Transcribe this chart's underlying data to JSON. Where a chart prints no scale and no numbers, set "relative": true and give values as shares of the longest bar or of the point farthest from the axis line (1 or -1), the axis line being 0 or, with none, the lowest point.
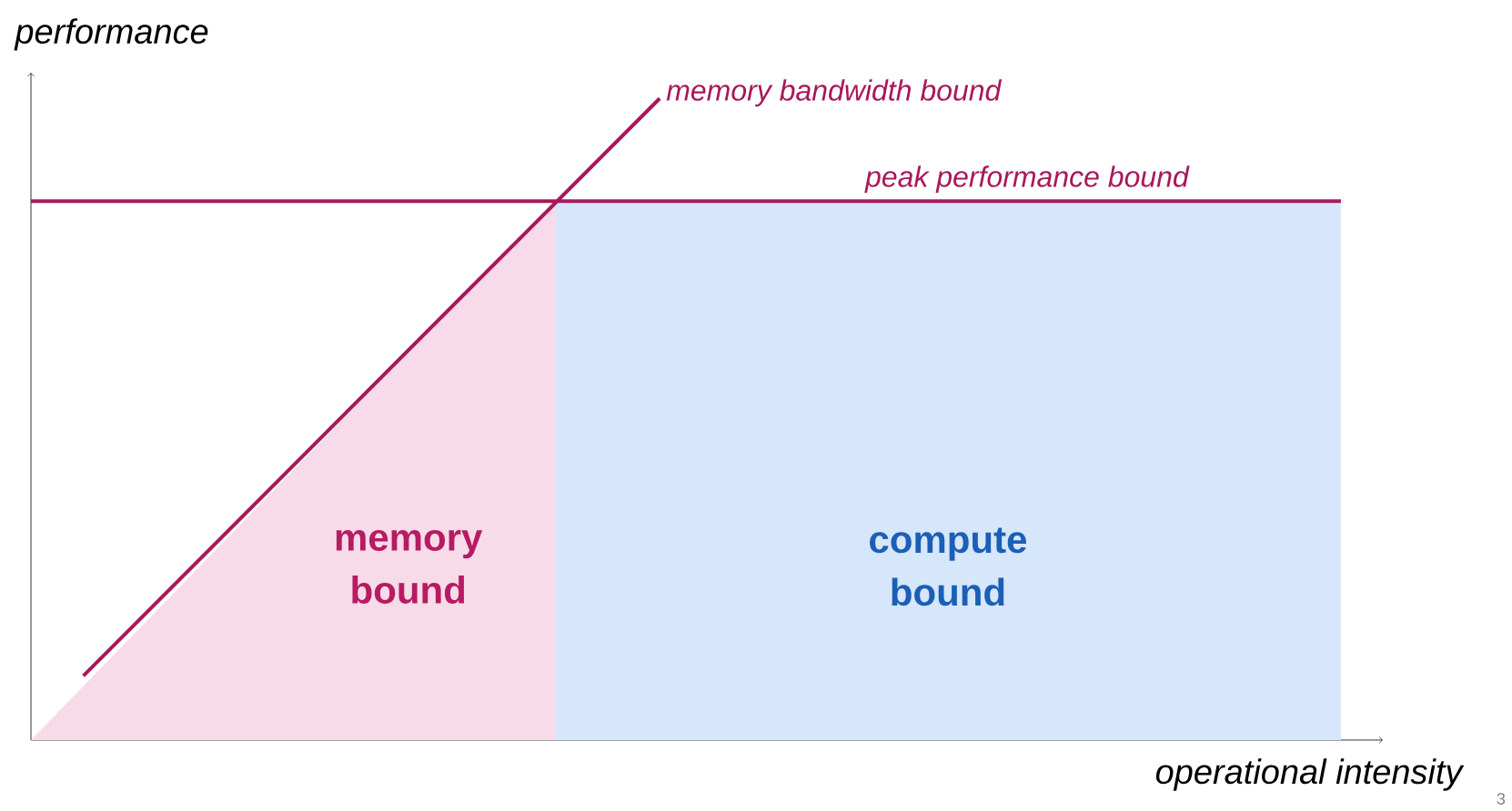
{
  "chart_data": {
    "type": "line",
    "relative": true,
    "xlabel": "operational intensity",
    "ylabel": "performance",
    "categories": [
      null,
      null,
      null,
      null,
      null,
      null,
      null,
      null,
      null,
      null,
      null,
      null,
      null,
      null,
      null,
      null,
      null,
      null,
      null,
      null,
      null,
      null,
      null,
      null,
      null,
      null
    ],
    "series": [
      {
        "name": "memory bound",
        "type": "area",
        "color": "#f7dbe8",
        "values": [
          0,
          null,
          null,
          null,
          null,
          null,
          null,
          null,
          null,
          null,
          0.84,
          null,
          null,
          null,
          null,
          null,
          null,
          null,
          null,
          null,
          null,
          null,
          null,
          null,
          null,
          null
        ]
      },
      {
        "name": "compute bound",
        "type": "area",
        "color": "#d6e6fb",
        "values": [
          null,
          null,
          null,
          null,
          null,
          null,
          null,
          null,
          null,
          null,
          0.84,
          null,
          null,
          null,
          null,
          null,
          null,
          null,
          null,
          null,
          null,
          null,
          null,
          null,
          null,
          0.84
        ]
      },
      {
        "name": "memory bandwidth bound",
        "color": "#a8185a",
        "values": [
          null,
          0.1,
          null,
          null,
          null,
          null,
          null,
          null,
          null,
          null,
          null,
          null,
          1.0,
          null,
          null,
          null,
          null,
          null,
          null,
          null,
          null,
          null,
          null,
          null,
          null,
          null
        ]
      },
      {
        "name": "peak performance bound",
        "color": "#a8185a",
        "values": [
          0.84,
          null,
          null,
          null,
          null,
          null,
          null,
          null,
          null,
          null,
          null,
          null,
          null,
          null,
          null,
          null,
          null,
          null,
          null,
          null,
          null,
          null,
          null,
          null,
          null,
          0.84
        ]
      }
    ],
    "annotations": [
      "3"
    ]
  }
}
